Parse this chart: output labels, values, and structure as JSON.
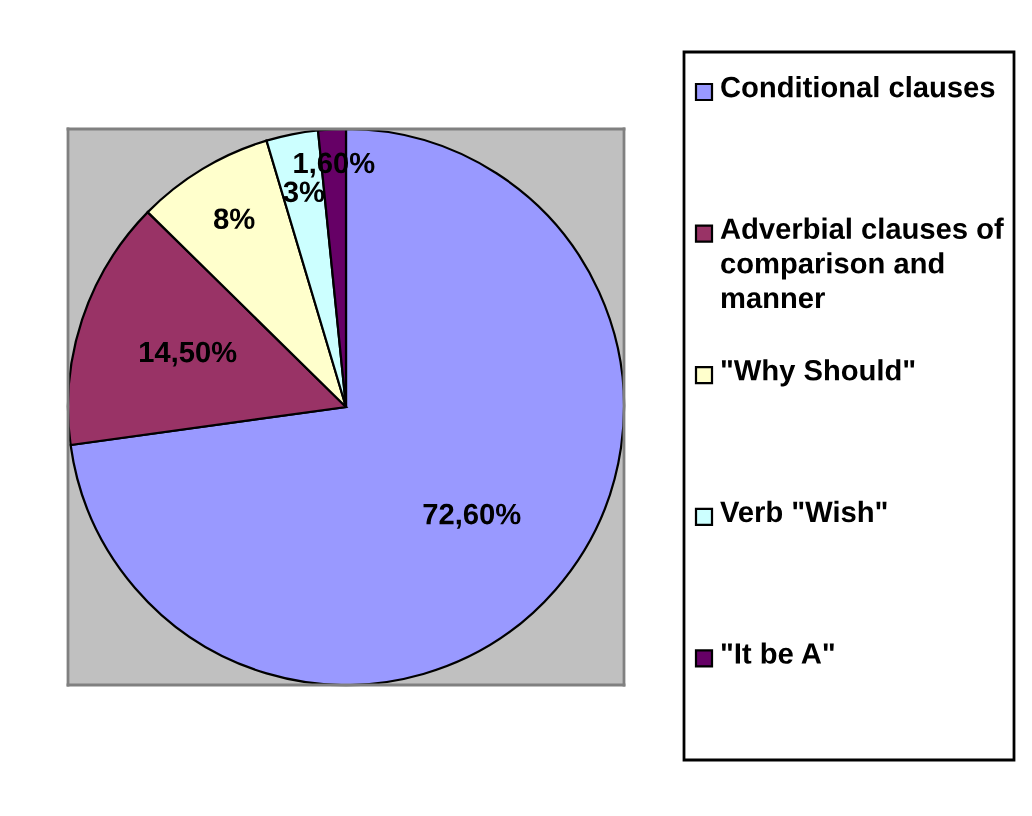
{
  "chart_data": {
    "type": "pie",
    "categories": [
      "Conditional clauses",
      "Adverbial clauses of comparison and manner",
      "\"Why Should\"",
      "Verb \"Wish\"",
      "\"It be A\""
    ],
    "values": [
      72.6,
      14.5,
      8,
      3,
      1.6
    ],
    "colors": [
      "#9999ff",
      "#993366",
      "#ffffcc",
      "#ccffff",
      "#660066"
    ],
    "value_labels": [
      "72,60%",
      "14,50%",
      "8%",
      "3%",
      "1,60%"
    ],
    "legend": "right"
  }
}
